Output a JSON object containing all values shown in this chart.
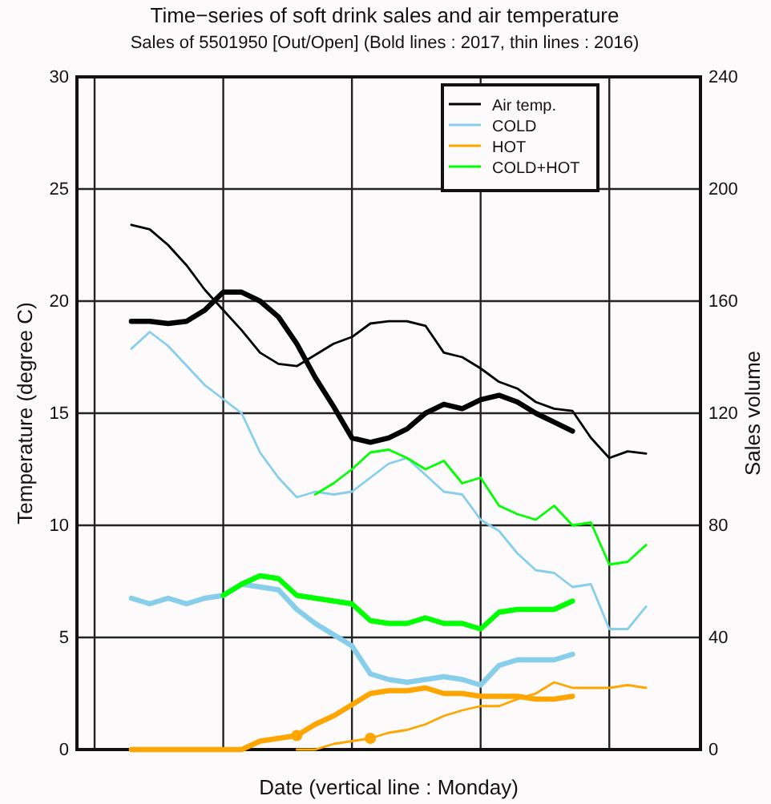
{
  "chart_data": {
    "type": "line",
    "title": "Time−series of soft drink sales and air temperature",
    "subtitle": "Sales of 5501950 [Out/Open] (Bold lines : 2017, thin lines : 2016)",
    "xlabel": "Date (vertical line : Monday)",
    "ylabel": "Temperature (degree C)",
    "y2label": "Sales volume",
    "categories": [
      null,
      null,
      null,
      null,
      null,
      null,
      null,
      null,
      null,
      null,
      null,
      null,
      null,
      null,
      null,
      null,
      null,
      null,
      null,
      null,
      null,
      null,
      null,
      null,
      null,
      null,
      null,
      null,
      null,
      null,
      null,
      null,
      null
    ],
    "ylim": [
      0,
      30
    ],
    "yticks": [
      0,
      5,
      10,
      15,
      20,
      25,
      30
    ],
    "y2lim": [
      0,
      240
    ],
    "y2ticks": [
      0,
      40,
      80,
      120,
      160,
      200,
      240
    ],
    "grid": true,
    "legend": "top right",
    "series": [
      {
        "color": "#000000",
        "values": [
          null,
          null,
          23.4,
          23.2,
          22.5,
          21.6,
          20.5,
          19.6,
          18.7,
          17.7,
          17.2,
          17.1,
          17.6,
          18.1,
          18.4,
          19.0,
          19.1,
          19.1,
          18.9,
          17.7,
          17.5,
          17.0,
          16.4,
          16.1,
          15.5,
          15.2,
          15.1,
          13.9,
          13.0,
          13.3,
          13.2,
          null,
          null
        ]
      },
      {
        "color": "#87ceeb",
        "axis": "y2",
        "values": [
          null,
          null,
          143,
          149,
          144,
          137,
          130,
          125,
          120,
          106,
          97,
          90,
          92,
          91,
          92,
          97,
          102,
          104,
          98,
          92,
          91,
          82,
          78,
          70,
          64,
          63,
          58,
          59,
          43,
          43,
          51,
          null,
          null
        ]
      },
      {
        "color": "#00ff00",
        "axis": "y2",
        "values": [
          null,
          null,
          null,
          null,
          null,
          null,
          null,
          null,
          null,
          null,
          null,
          null,
          91,
          95,
          100,
          106,
          107,
          104,
          100,
          103,
          95,
          97,
          87,
          84,
          82,
          87,
          80,
          81,
          66,
          67,
          73,
          null,
          null
        ]
      },
      {
        "color": "#ffa500",
        "axis": "y2",
        "values": [
          null,
          null,
          null,
          null,
          null,
          null,
          null,
          null,
          null,
          null,
          null,
          0,
          0,
          2,
          3,
          4,
          6,
          7,
          9,
          12,
          14,
          15.5,
          15.5,
          18,
          20,
          24,
          22,
          22,
          22,
          23,
          22,
          null,
          null
        ]
      },
      {
        "name": "Air temp.",
        "color": "#000000",
        "values": [
          null,
          null,
          19.1,
          19.1,
          19.0,
          19.1,
          19.6,
          20.4,
          20.4,
          20.0,
          19.3,
          18.1,
          16.6,
          15.3,
          13.9,
          13.7,
          13.9,
          14.3,
          15.0,
          15.4,
          15.2,
          15.6,
          15.8,
          15.5,
          15.0,
          14.6,
          14.2,
          null,
          null,
          null,
          null,
          null,
          null
        ]
      },
      {
        "name": "COLD",
        "color": "#87ceeb",
        "axis": "y2",
        "values": [
          null,
          null,
          54,
          52,
          54,
          52,
          54,
          55,
          59,
          58,
          57,
          50,
          45,
          41,
          37,
          27,
          25,
          24,
          25,
          26,
          25,
          23,
          30,
          32,
          32,
          32,
          34,
          null,
          null,
          null,
          null,
          null,
          null
        ]
      },
      {
        "name": "HOT",
        "color": "#ffa500",
        "axis": "y2",
        "values": [
          null,
          null,
          0,
          0,
          0,
          0,
          0,
          0,
          0,
          3,
          4,
          5,
          9,
          12,
          16,
          20,
          21,
          21,
          22,
          20,
          20,
          19,
          19,
          19,
          18,
          18,
          19,
          null,
          null,
          null,
          null,
          null,
          null
        ]
      },
      {
        "name": "COLD+HOT",
        "color": "#00ff00",
        "axis": "y2",
        "values": [
          null,
          null,
          null,
          null,
          null,
          null,
          null,
          55,
          59,
          62,
          61,
          55,
          54,
          53,
          52,
          46,
          45,
          45,
          47,
          45,
          45,
          43,
          49,
          50,
          50,
          50,
          53,
          null,
          null,
          null,
          null,
          null,
          null
        ]
      },
      {
        "type": "scatter",
        "color": "#ffa500",
        "axis": "y2",
        "values": [
          null,
          null,
          null,
          null,
          null,
          null,
          null,
          null,
          null,
          null,
          null,
          5,
          null,
          null,
          null,
          4,
          null,
          null,
          null,
          null,
          null,
          null,
          null,
          null,
          null,
          null,
          null,
          null,
          null,
          null,
          null,
          null,
          null
        ]
      }
    ]
  }
}
